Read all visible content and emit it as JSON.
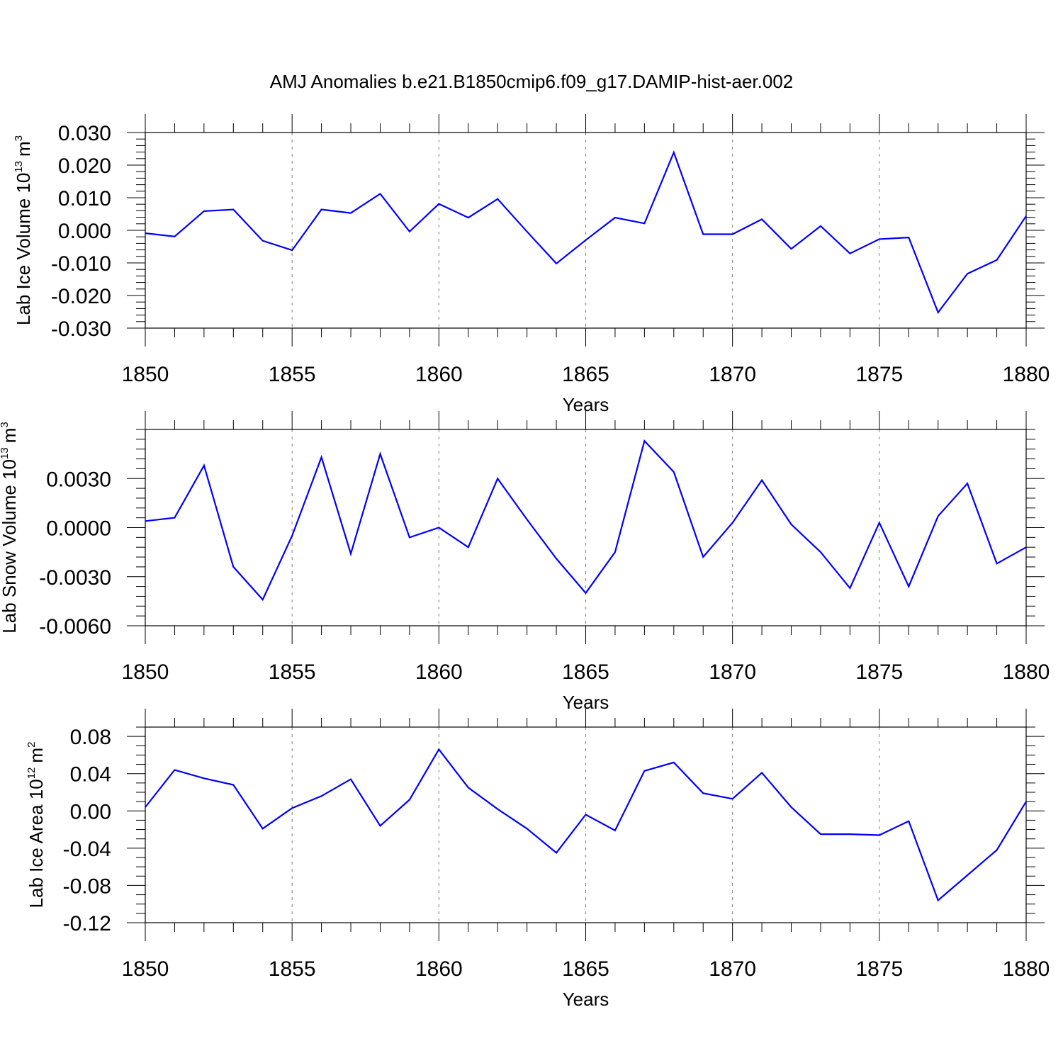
{
  "title": "AMJ Anomalies b.e21.B1850cmip6.f09_g17.DAMIP-hist-aer.002",
  "colors": {
    "series": "#0000ff",
    "axis": "#000000",
    "grid": "#7f7f7f"
  },
  "chart_data": [
    {
      "type": "line",
      "ylabel": "Lab Ice Volume 10",
      "ylabel_exponent": "13",
      "ylabel_unit": "m",
      "ylabel_unit_exponent": "3",
      "xlabel": "Years",
      "xlim": [
        1850,
        1880
      ],
      "ylim": [
        -0.03,
        0.03
      ],
      "x_ticks": [
        "1850",
        "1855",
        "1860",
        "1865",
        "1870",
        "1875",
        "1880"
      ],
      "y_ticks": [
        {
          "value": 0.03,
          "label": "0.030"
        },
        {
          "value": 0.02,
          "label": "0.020"
        },
        {
          "value": 0.01,
          "label": "0.010"
        },
        {
          "value": 0.0,
          "label": "0.000"
        },
        {
          "value": -0.01,
          "label": "-0.010"
        },
        {
          "value": -0.02,
          "label": "-0.020"
        },
        {
          "value": -0.03,
          "label": "-0.030"
        }
      ],
      "grid": "vertical dashed at 5-year ticks",
      "x": [
        1850,
        1851,
        1852,
        1853,
        1854,
        1855,
        1856,
        1857,
        1858,
        1859,
        1860,
        1861,
        1862,
        1863,
        1864,
        1865,
        1866,
        1867,
        1868,
        1869,
        1870,
        1871,
        1872,
        1873,
        1874,
        1875,
        1876,
        1877,
        1878,
        1879,
        1880
      ],
      "values": [
        -0.0009,
        -0.0019,
        0.0059,
        0.0064,
        -0.0032,
        -0.0061,
        0.0064,
        0.0053,
        0.0112,
        -0.0004,
        0.0081,
        0.0039,
        0.0096,
        -0.0004,
        -0.0102,
        -0.003,
        0.0039,
        0.0021,
        0.0239,
        -0.0012,
        -0.0012,
        0.0034,
        -0.0057,
        0.0013,
        -0.0071,
        -0.0027,
        -0.0022,
        -0.0252,
        -0.0133,
        -0.0091,
        0.0044
      ]
    },
    {
      "type": "line",
      "ylabel": "Lab Snow Volume 10",
      "ylabel_exponent": "13",
      "ylabel_unit": "m",
      "ylabel_unit_exponent": "3",
      "xlabel": "Years",
      "xlim": [
        1850,
        1880
      ],
      "ylim": [
        -0.006,
        0.006
      ],
      "x_ticks": [
        "1850",
        "1855",
        "1860",
        "1865",
        "1870",
        "1875",
        "1880"
      ],
      "y_ticks": [
        {
          "value": 0.003,
          "label": "0.0030"
        },
        {
          "value": 0.0,
          "label": "0.0000"
        },
        {
          "value": -0.003,
          "label": "-0.0030"
        },
        {
          "value": -0.006,
          "label": "-0.0060"
        }
      ],
      "grid": "vertical dashed at 5-year ticks",
      "x": [
        1850,
        1851,
        1852,
        1853,
        1854,
        1855,
        1856,
        1857,
        1858,
        1859,
        1860,
        1861,
        1862,
        1863,
        1864,
        1865,
        1866,
        1867,
        1868,
        1869,
        1870,
        1871,
        1872,
        1873,
        1874,
        1875,
        1876,
        1877,
        1878,
        1879,
        1880
      ],
      "values": [
        0.0004,
        0.0006,
        0.0038,
        -0.0024,
        -0.0044,
        -0.0005,
        0.0043,
        -0.0016,
        0.0045,
        -0.0006,
        0.0,
        -0.0012,
        0.003,
        0.0005,
        -0.0019,
        -0.004,
        -0.0015,
        0.0053,
        0.0034,
        -0.0018,
        0.0003,
        0.0029,
        0.0002,
        -0.0015,
        -0.0037,
        0.0003,
        -0.0036,
        0.0007,
        0.0027,
        -0.0022,
        -0.0012
      ]
    },
    {
      "type": "line",
      "ylabel": "Lab Ice Area 10",
      "ylabel_exponent": "12",
      "ylabel_unit": "m",
      "ylabel_unit_exponent": "2",
      "xlabel": "Years",
      "xlim": [
        1850,
        1880
      ],
      "ylim": [
        -0.12,
        0.09
      ],
      "x_ticks": [
        "1850",
        "1855",
        "1860",
        "1865",
        "1870",
        "1875",
        "1880"
      ],
      "y_ticks": [
        {
          "value": 0.08,
          "label": "0.08"
        },
        {
          "value": 0.04,
          "label": "0.04"
        },
        {
          "value": 0.0,
          "label": "0.00"
        },
        {
          "value": -0.04,
          "label": "-0.04"
        },
        {
          "value": -0.08,
          "label": "-0.08"
        },
        {
          "value": -0.12,
          "label": "-0.12"
        }
      ],
      "grid": "vertical dashed at 5-year ticks",
      "x": [
        1850,
        1851,
        1852,
        1853,
        1854,
        1855,
        1856,
        1857,
        1858,
        1859,
        1860,
        1861,
        1862,
        1863,
        1864,
        1865,
        1866,
        1867,
        1868,
        1869,
        1870,
        1871,
        1872,
        1873,
        1874,
        1875,
        1876,
        1877,
        1878,
        1879,
        1880
      ],
      "values": [
        0.004,
        0.044,
        0.035,
        0.028,
        -0.019,
        0.003,
        0.016,
        0.034,
        -0.016,
        0.012,
        0.066,
        0.025,
        0.002,
        -0.019,
        -0.045,
        -0.004,
        -0.021,
        0.043,
        0.052,
        0.019,
        0.013,
        0.041,
        0.004,
        -0.025,
        -0.025,
        -0.026,
        -0.011,
        -0.096,
        -0.069,
        -0.042,
        0.01
      ]
    }
  ]
}
